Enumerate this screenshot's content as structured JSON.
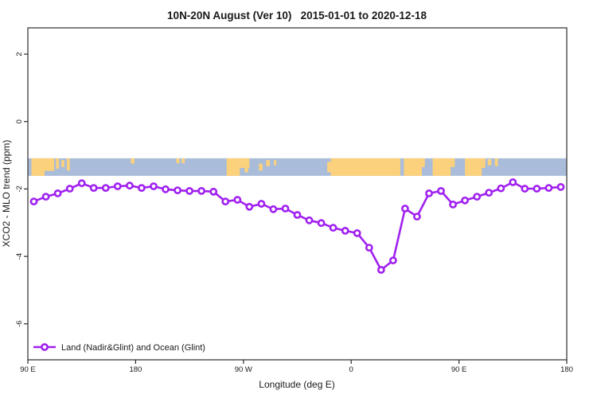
{
  "title": "10N-20N August (Ver 10)   2015-01-01 to 2020-12-18",
  "colors": {
    "line": "#a020f0",
    "marker_fill": "#ffffff",
    "ocean_band": "#a9bcd9",
    "land_band": "#fcd17c",
    "axis": "#2b2b2b"
  },
  "chart_data": {
    "type": "line",
    "title": "10N-20N August (Ver 10)   2015-01-01 to 2020-12-18",
    "xlabel": "Longitude (deg E)",
    "ylabel": "XCO2 - MLO trend (ppm)",
    "legend": [
      "Land (Nadir&Glint) and Ocean (Glint)"
    ],
    "legend_position": "bottom-left",
    "grid": false,
    "x_axis_note": "longitude axis runs eastward from 90E through 180, 90W, 0, 90E to 180 (deg stored as continuous 90-540)",
    "x_tick_positions_deg": [
      90,
      180,
      270,
      360,
      450,
      540
    ],
    "x_tick_labels": [
      "90 E",
      "180",
      "90 W",
      "0",
      "90 E",
      "180"
    ],
    "y_ticks": [
      2,
      0,
      -2,
      -4,
      -6
    ],
    "y_axis_range": [
      -7.1,
      2.8
    ],
    "series": [
      {
        "name": "Land (Nadir&Glint) and Ocean (Glint)",
        "marker": "open-circle",
        "x_deg": [
          95,
          105,
          115,
          125,
          135,
          145,
          155,
          165,
          175,
          185,
          195,
          205,
          215,
          225,
          235,
          245,
          255,
          265,
          275,
          285,
          295,
          305,
          315,
          325,
          335,
          345,
          355,
          365,
          375,
          385,
          395,
          405,
          415,
          425,
          435,
          445,
          455,
          465,
          475,
          485,
          495,
          505,
          515,
          525,
          535
        ],
        "values": [
          -2.37,
          -2.23,
          -2.13,
          -1.99,
          -1.83,
          -1.97,
          -1.97,
          -1.92,
          -1.9,
          -1.97,
          -1.92,
          -2.01,
          -2.04,
          -2.06,
          -2.06,
          -2.08,
          -2.37,
          -2.32,
          -2.53,
          -2.44,
          -2.6,
          -2.58,
          -2.77,
          -2.93,
          -3.01,
          -3.15,
          -3.24,
          -3.31,
          -3.74,
          -4.4,
          -4.12,
          -2.58,
          -2.82,
          -2.13,
          -2.06,
          -2.46,
          -2.34,
          -2.23,
          -2.11,
          -1.98,
          -1.8,
          -1.99,
          -1.99,
          -1.97,
          -1.94
        ]
      }
    ],
    "map_band": {
      "description": "world-map strip (10N-20N latitudes): ocean blue with land shown orange",
      "value_top": -1.09,
      "value_bottom": -1.61,
      "land_segments_deg": [
        {
          "from": 93,
          "to": 103,
          "top": 0,
          "bottom": 1
        },
        {
          "from": 103,
          "to": 112,
          "top": 0,
          "bottom": 0.72
        },
        {
          "from": 97,
          "to": 104,
          "top": 0.5,
          "bottom": 1
        },
        {
          "from": 113.5,
          "to": 116,
          "top": 0,
          "bottom": 0.6
        },
        {
          "from": 118,
          "to": 120.5,
          "top": 0.1,
          "bottom": 0.5
        },
        {
          "from": 122.5,
          "to": 125,
          "top": 0,
          "bottom": 0.7
        },
        {
          "from": 176,
          "to": 179,
          "top": 0,
          "bottom": 0.3
        },
        {
          "from": 214,
          "to": 216.5,
          "top": 0,
          "bottom": 0.28
        },
        {
          "from": 218.5,
          "to": 221,
          "top": 0,
          "bottom": 0.28
        },
        {
          "from": 256,
          "to": 267,
          "top": 0,
          "bottom": 1
        },
        {
          "from": 267,
          "to": 275,
          "top": 0,
          "bottom": 0.55
        },
        {
          "from": 271,
          "to": 274,
          "top": 0.55,
          "bottom": 0.8
        },
        {
          "from": 283,
          "to": 286,
          "top": 0.3,
          "bottom": 0.7
        },
        {
          "from": 289,
          "to": 292,
          "top": 0.1,
          "bottom": 0.45
        },
        {
          "from": 295.5,
          "to": 297.5,
          "top": 0.1,
          "bottom": 0.4
        },
        {
          "from": 340,
          "to": 343,
          "top": 0.2,
          "bottom": 0.8
        },
        {
          "from": 343,
          "to": 401,
          "top": 0,
          "bottom": 1
        },
        {
          "from": 404,
          "to": 419,
          "top": 0,
          "bottom": 1
        },
        {
          "from": 419,
          "to": 421.5,
          "top": 0,
          "bottom": 0.5
        },
        {
          "from": 428,
          "to": 443,
          "top": 0,
          "bottom": 1
        },
        {
          "from": 443,
          "to": 446.5,
          "top": 0,
          "bottom": 0.5
        },
        {
          "from": 455,
          "to": 469,
          "top": 0,
          "bottom": 1
        },
        {
          "from": 469,
          "to": 472,
          "top": 0,
          "bottom": 0.55
        },
        {
          "from": 474,
          "to": 477,
          "top": 0.05,
          "bottom": 0.4
        },
        {
          "from": 480,
          "to": 482.5,
          "top": 0,
          "bottom": 0.45
        }
      ]
    }
  }
}
